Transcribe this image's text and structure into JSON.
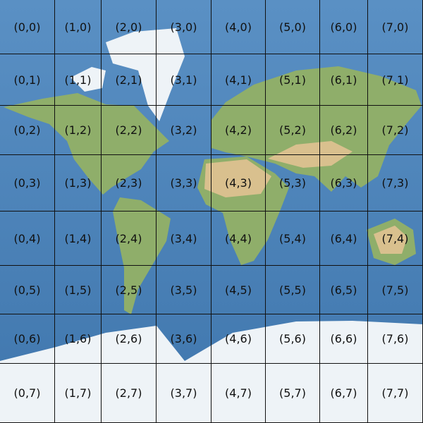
{
  "map": {
    "colors": {
      "ocean": "#4f86bd",
      "land": "#8fae6a",
      "desert": "#d9c08e",
      "ice": "#eef3f7",
      "grid": "#111111"
    },
    "grid_columns": 8,
    "grid_rows": 8,
    "tile_labels": [
      [
        "(0,0)",
        "(1,0)",
        "(2,0)",
        "(3,0)",
        "(4,0)",
        "(5,0)",
        "(6,0)",
        "(7,0)"
      ],
      [
        "(0,1)",
        "(1,1)",
        "(2,1)",
        "(3,1)",
        "(4,1)",
        "(5,1)",
        "(6,1)",
        "(7,1)"
      ],
      [
        "(0,2)",
        "(1,2)",
        "(2,2)",
        "(3,2)",
        "(4,2)",
        "(5,2)",
        "(6,2)",
        "(7,2)"
      ],
      [
        "(0,3)",
        "(1,3)",
        "(2,3)",
        "(3,3)",
        "(4,3)",
        "(5,3)",
        "(6,3)",
        "(7,3)"
      ],
      [
        "(0,4)",
        "(1,4)",
        "(2,4)",
        "(3,4)",
        "(4,4)",
        "(5,4)",
        "(6,4)",
        "(7,4)"
      ],
      [
        "(0,5)",
        "(1,5)",
        "(2,5)",
        "(3,5)",
        "(4,5)",
        "(5,5)",
        "(6,5)",
        "(7,5)"
      ],
      [
        "(0,6)",
        "(1,6)",
        "(2,6)",
        "(3,6)",
        "(4,6)",
        "(5,6)",
        "(6,6)",
        "(7,6)"
      ],
      [
        "(0,7)",
        "(1,7)",
        "(2,7)",
        "(3,7)",
        "(4,7)",
        "(5,7)",
        "(6,7)",
        "(7,7)"
      ]
    ]
  }
}
